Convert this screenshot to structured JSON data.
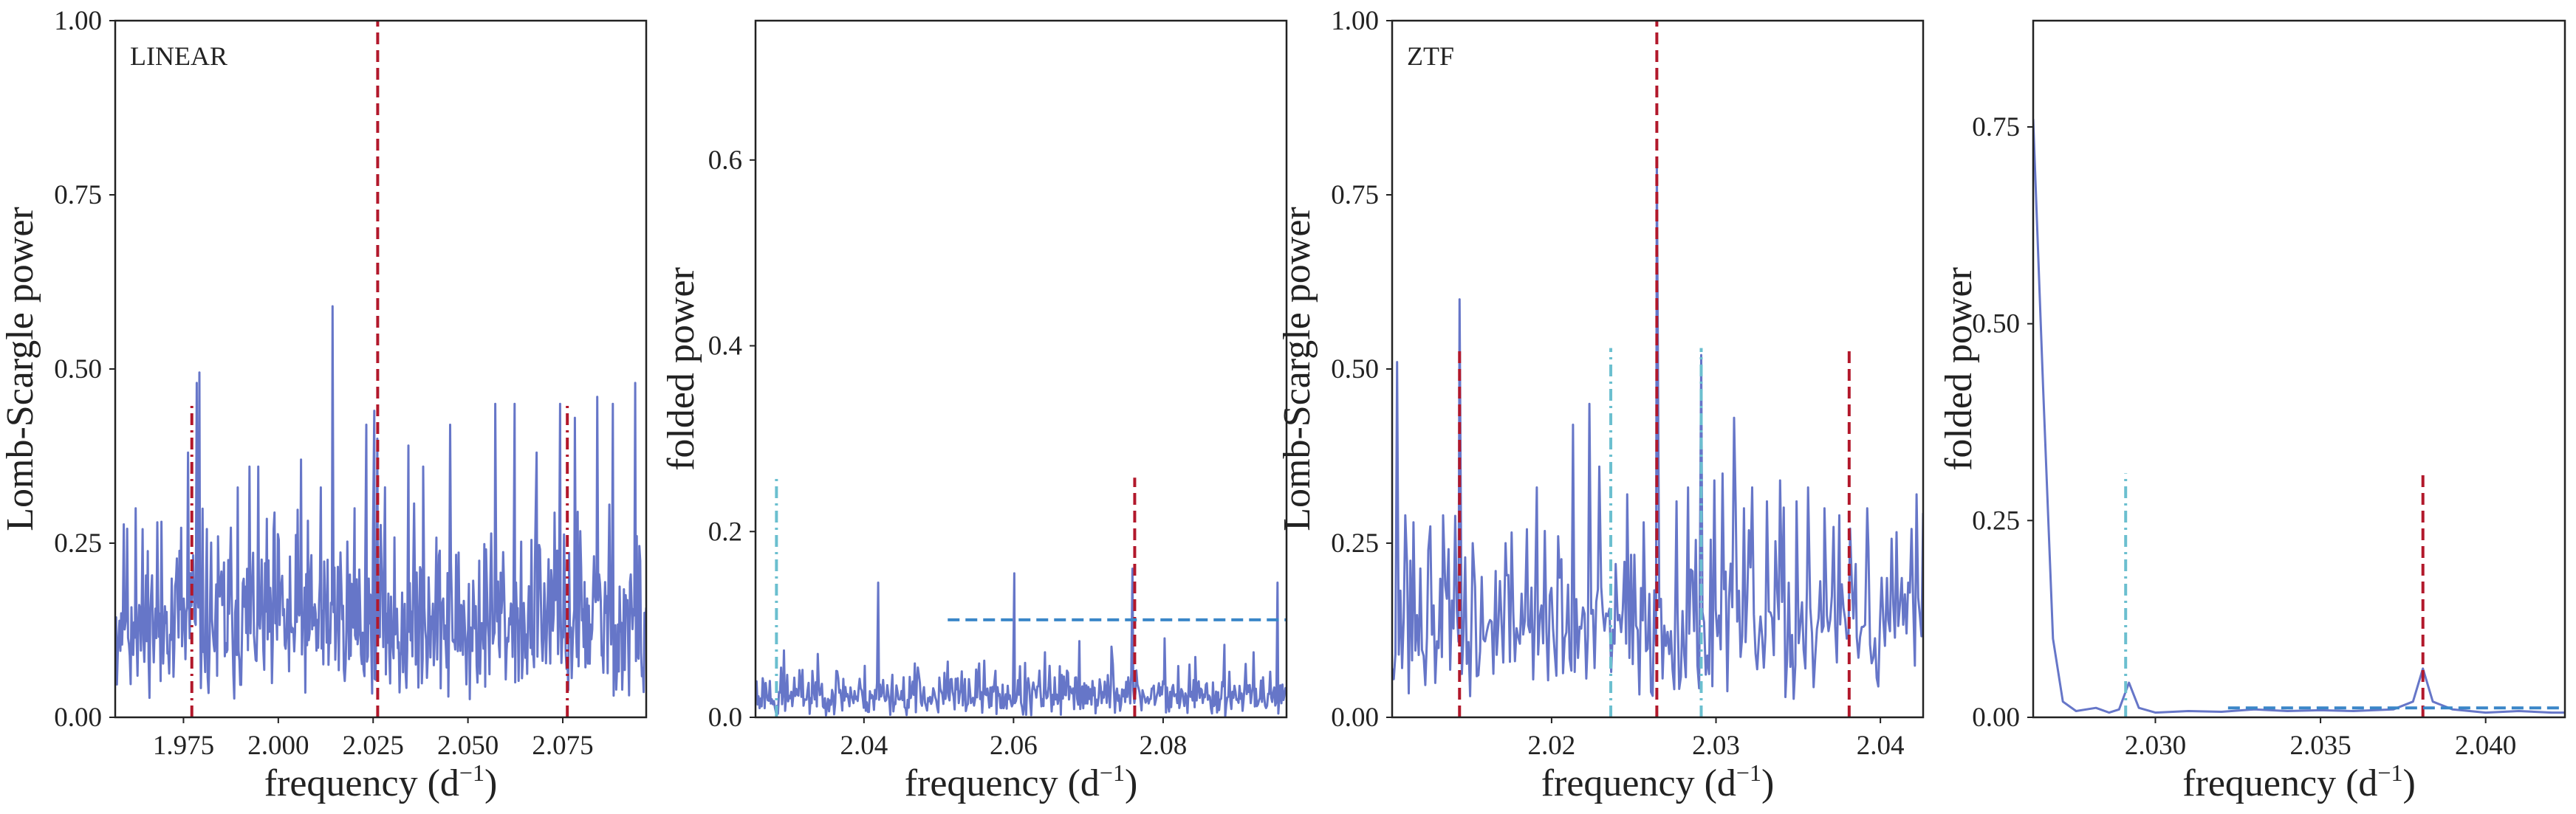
{
  "chart_data": [
    {
      "type": "line",
      "panel_label": "LINEAR",
      "xlabel": "frequency (d",
      "xlabel_exp": "−1",
      "xlabel_close": ")",
      "ylabel": "Lomb-Scargle power",
      "xlim": [
        1.957,
        2.097
      ],
      "ylim": [
        0.0,
        1.0
      ],
      "xticks": [
        1.975,
        2.0,
        2.025,
        2.05,
        2.075
      ],
      "xtick_labels": [
        "1.975",
        "2.000",
        "2.025",
        "2.050",
        "2.075"
      ],
      "yticks": [
        0.0,
        0.25,
        0.5,
        0.75,
        1.0
      ],
      "ytick_labels": [
        "0.00",
        "0.25",
        "0.50",
        "0.75",
        "1.00"
      ],
      "series_color": "#6676c8",
      "spikes": [
        [
          1.9624,
          0.3
        ],
        [
          1.9681,
          0.28
        ],
        [
          1.9762,
          0.38
        ],
        [
          1.9785,
          0.48
        ],
        [
          1.9792,
          0.495
        ],
        [
          1.9893,
          0.33
        ],
        [
          1.9924,
          0.36
        ],
        [
          2.006,
          0.37
        ],
        [
          2.0112,
          0.33
        ],
        [
          2.0143,
          0.59
        ],
        [
          2.0201,
          0.3
        ],
        [
          2.0232,
          0.42
        ],
        [
          2.0253,
          0.44
        ],
        [
          2.0261,
          0.4
        ],
        [
          2.0343,
          0.39
        ],
        [
          2.0382,
          0.36
        ],
        [
          2.0453,
          0.42
        ],
        [
          2.0572,
          0.45
        ],
        [
          2.0623,
          0.45
        ],
        [
          2.0681,
          0.38
        ],
        [
          2.0743,
          0.45
        ],
        [
          2.0782,
          0.43
        ],
        [
          2.0841,
          0.46
        ],
        [
          2.0882,
          0.45
        ],
        [
          2.0941,
          0.48
        ]
      ],
      "vlines": [
        {
          "x": 2.0262,
          "y0": 0.0,
          "y1": 1.0,
          "color": "#b2182b",
          "dash": "dashed"
        },
        {
          "x": 1.9772,
          "y0": 0.0,
          "y1": 0.45,
          "color": "#b2182b",
          "dash": "dashdot"
        },
        {
          "x": 2.0762,
          "y0": 0.0,
          "y1": 0.45,
          "color": "#b2182b",
          "dash": "dashdot"
        }
      ],
      "hlines": []
    },
    {
      "type": "line",
      "panel_label": "",
      "xlabel": "frequency (d",
      "xlabel_exp": "−1",
      "xlabel_close": ")",
      "ylabel": "folded power",
      "xlim": [
        2.0255,
        2.0965
      ],
      "ylim": [
        0.0,
        0.75
      ],
      "xticks": [
        2.04,
        2.06,
        2.08
      ],
      "xtick_labels": [
        "2.04",
        "2.06",
        "2.08"
      ],
      "yticks": [
        0.0,
        0.2,
        0.4,
        0.6
      ],
      "ytick_labels": [
        "0.0",
        "0.2",
        "0.4",
        "0.6"
      ],
      "series_color": "#6676c8",
      "spikes": [
        [
          2.0293,
          0.072
        ],
        [
          2.0331,
          0.05
        ],
        [
          2.0363,
          0.05
        ],
        [
          2.0419,
          0.145
        ],
        [
          2.0468,
          0.058
        ],
        [
          2.0512,
          0.06
        ],
        [
          2.0554,
          0.058
        ],
        [
          2.0601,
          0.155
        ],
        [
          2.0642,
          0.07
        ],
        [
          2.0688,
          0.082
        ],
        [
          2.0731,
          0.076
        ],
        [
          2.0759,
          0.16
        ],
        [
          2.0802,
          0.085
        ],
        [
          2.0843,
          0.065
        ],
        [
          2.0882,
          0.078
        ],
        [
          2.0921,
          0.07
        ],
        [
          2.0953,
          0.145
        ]
      ],
      "vlines": [
        {
          "x": 2.0283,
          "y0": 0.0,
          "y1": 0.258,
          "color": "#6bbfcf",
          "dash": "dashdot"
        },
        {
          "x": 2.0762,
          "y0": 0.0,
          "y1": 0.258,
          "color": "#b2182b",
          "dash": "dashed"
        }
      ],
      "hlines": [
        {
          "y": 0.105,
          "x0": 2.0512,
          "x1": 2.0965,
          "color": "#3a86c8",
          "dash": "dashed"
        }
      ]
    },
    {
      "type": "line",
      "panel_label": "ZTF",
      "xlabel": "frequency (d",
      "xlabel_exp": "−1",
      "xlabel_close": ")",
      "ylabel": "Lomb-Scargle power",
      "xlim": [
        2.0103,
        2.0426
      ],
      "ylim": [
        0.0,
        1.0
      ],
      "xticks": [
        2.02,
        2.03,
        2.04
      ],
      "xtick_labels": [
        "2.02",
        "2.03",
        "2.04"
      ],
      "yticks": [
        0.0,
        0.25,
        0.5,
        0.75,
        1.0
      ],
      "ytick_labels": [
        "0.00",
        "0.25",
        "0.50",
        "0.75",
        "1.00"
      ],
      "series_color": "#6676c8",
      "spikes": [
        [
          2.0106,
          0.51
        ],
        [
          2.0111,
          0.29
        ],
        [
          2.0116,
          0.28
        ],
        [
          2.0125,
          0.24
        ],
        [
          2.0134,
          0.29
        ],
        [
          2.0144,
          0.6
        ],
        [
          2.0152,
          0.25
        ],
        [
          2.0166,
          0.21
        ],
        [
          2.0172,
          0.25
        ],
        [
          2.0185,
          0.27
        ],
        [
          2.0191,
          0.33
        ],
        [
          2.0204,
          0.26
        ],
        [
          2.0213,
          0.42
        ],
        [
          2.0223,
          0.45
        ],
        [
          2.0229,
          0.36
        ],
        [
          2.0239,
          0.22
        ],
        [
          2.0246,
          0.32
        ],
        [
          2.0256,
          0.28
        ],
        [
          2.0264,
          0.8
        ],
        [
          2.0276,
          0.31
        ],
        [
          2.0283,
          0.33
        ],
        [
          2.0291,
          0.52
        ],
        [
          2.0299,
          0.34
        ],
        [
          2.0304,
          0.35
        ],
        [
          2.0311,
          0.43
        ],
        [
          2.0317,
          0.3
        ],
        [
          2.0322,
          0.33
        ],
        [
          2.0331,
          0.31
        ],
        [
          2.0339,
          0.34
        ],
        [
          2.0349,
          0.31
        ],
        [
          2.0356,
          0.33
        ],
        [
          2.0366,
          0.3
        ],
        [
          2.0375,
          0.29
        ],
        [
          2.0385,
          0.22
        ],
        [
          2.0392,
          0.3
        ],
        [
          2.0404,
          0.2
        ],
        [
          2.0413,
          0.2
        ],
        [
          2.0422,
          0.32
        ]
      ],
      "vlines": [
        {
          "x": 2.0264,
          "y0": 0.0,
          "y1": 1.0,
          "color": "#b2182b",
          "dash": "dashed"
        },
        {
          "x": 2.0144,
          "y0": 0.0,
          "y1": 0.53,
          "color": "#b2182b",
          "dash": "dashed"
        },
        {
          "x": 2.0381,
          "y0": 0.0,
          "y1": 0.53,
          "color": "#b2182b",
          "dash": "dashed"
        },
        {
          "x": 2.0236,
          "y0": 0.0,
          "y1": 0.53,
          "color": "#6bbfcf",
          "dash": "dashdot"
        },
        {
          "x": 2.0291,
          "y0": 0.0,
          "y1": 0.53,
          "color": "#6bbfcf",
          "dash": "dashdot"
        }
      ],
      "hlines": []
    },
    {
      "type": "line",
      "panel_label": "",
      "xlabel": "frequency (d",
      "xlabel_exp": "−1",
      "xlabel_close": ")",
      "ylabel": "folded power",
      "xlim": [
        2.0263,
        2.0424
      ],
      "ylim": [
        0.0,
        0.885
      ],
      "xticks": [
        2.03,
        2.035,
        2.04
      ],
      "xtick_labels": [
        "2.030",
        "2.035",
        "2.040"
      ],
      "yticks": [
        0.0,
        0.25,
        0.5,
        0.75
      ],
      "ytick_labels": [
        "0.00",
        "0.25",
        "0.50",
        "0.75"
      ],
      "series_color": "#6676c8",
      "points": [
        [
          2.0263,
          0.76
        ],
        [
          2.0266,
          0.42
        ],
        [
          2.0269,
          0.1
        ],
        [
          2.0272,
          0.02
        ],
        [
          2.0276,
          0.008
        ],
        [
          2.0282,
          0.012
        ],
        [
          2.0286,
          0.006
        ],
        [
          2.0289,
          0.01
        ],
        [
          2.0292,
          0.044
        ],
        [
          2.0295,
          0.012
        ],
        [
          2.03,
          0.006
        ],
        [
          2.031,
          0.008
        ],
        [
          2.032,
          0.007
        ],
        [
          2.033,
          0.01
        ],
        [
          2.034,
          0.008
        ],
        [
          2.035,
          0.009
        ],
        [
          2.036,
          0.008
        ],
        [
          2.0372,
          0.01
        ],
        [
          2.0378,
          0.02
        ],
        [
          2.0381,
          0.062
        ],
        [
          2.0384,
          0.02
        ],
        [
          2.039,
          0.01
        ],
        [
          2.04,
          0.006
        ],
        [
          2.041,
          0.008
        ],
        [
          2.042,
          0.006
        ],
        [
          2.0424,
          0.006
        ]
      ],
      "vlines": [
        {
          "x": 2.0291,
          "y0": 0.0,
          "y1": 0.31,
          "color": "#6bbfcf",
          "dash": "dashdot"
        },
        {
          "x": 2.0381,
          "y0": 0.0,
          "y1": 0.31,
          "color": "#b2182b",
          "dash": "dashed"
        }
      ],
      "hlines": [
        {
          "y": 0.012,
          "x0": 2.0322,
          "x1": 2.0424,
          "color": "#3a86c8",
          "dash": "dashed"
        }
      ]
    }
  ]
}
